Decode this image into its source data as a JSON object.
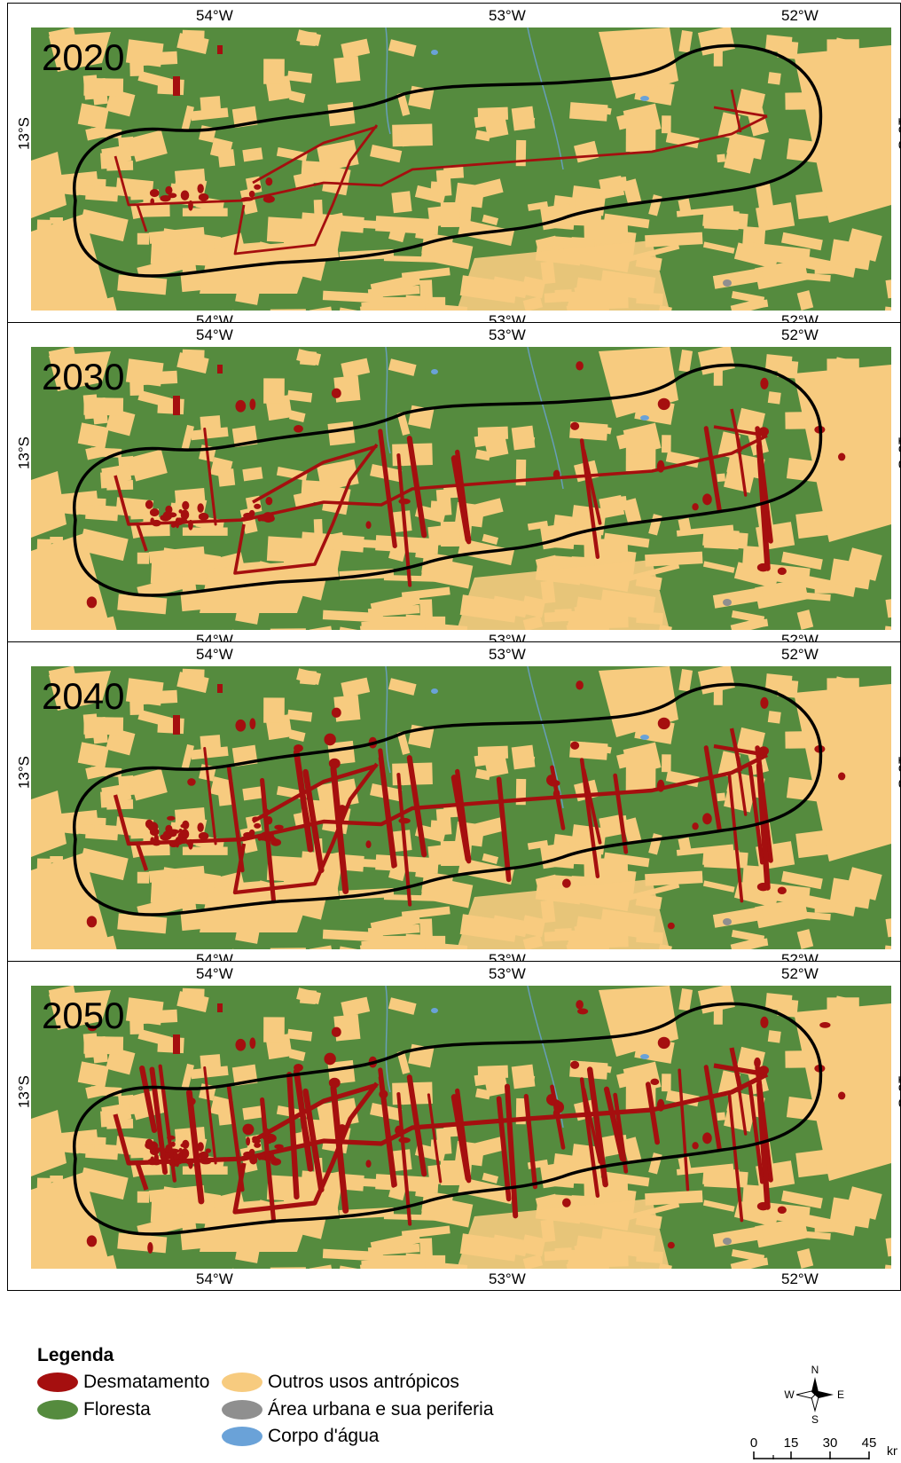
{
  "panels": [
    {
      "year": "2020",
      "level": 1
    },
    {
      "year": "2030",
      "level": 2
    },
    {
      "year": "2040",
      "level": 3
    },
    {
      "year": "2050",
      "level": 4
    }
  ],
  "ticks": {
    "lon": [
      "54°W",
      "53°W",
      "52°W"
    ],
    "lat": "13°S"
  },
  "legend": {
    "title": "Legenda",
    "items": [
      {
        "label": "Desmatamento",
        "color": "#a50f0f"
      },
      {
        "label": "Floresta",
        "color": "#558b3e"
      },
      {
        "label": "Outros usos antrópicos",
        "color": "#f7cb7f"
      },
      {
        "label": "Área urbana e sua periferia",
        "color": "#8f8f8f"
      },
      {
        "label": "Corpo d'água",
        "color": "#6aa2d8"
      }
    ]
  },
  "compass": {
    "n": "N",
    "s": "S",
    "e": "E",
    "w": "W"
  },
  "scale": {
    "labels": [
      "0",
      "15",
      "30",
      "45"
    ],
    "unit": "km"
  }
}
